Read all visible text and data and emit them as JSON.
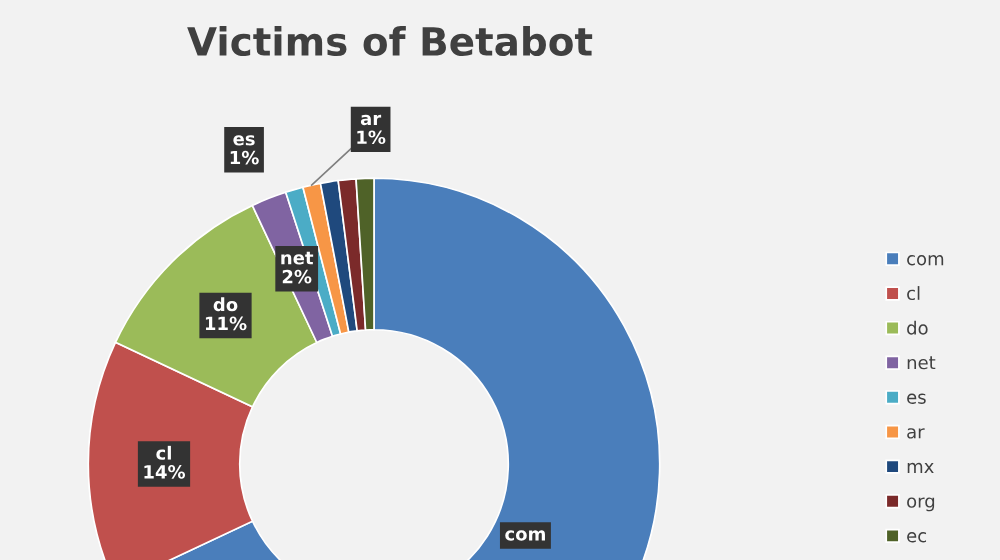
{
  "chart_data": {
    "type": "donut",
    "title": "Victims of Betabot",
    "categories": [
      "com",
      "cl",
      "do",
      "net",
      "es",
      "ar",
      "mx",
      "org",
      "ec"
    ],
    "values": [
      68,
      14,
      11,
      2,
      1,
      1,
      1,
      1,
      1
    ],
    "colors": [
      "#4a7ebb",
      "#c0504d",
      "#9bbb59",
      "#8064a2",
      "#4bacc6",
      "#f79646",
      "#1f497d",
      "#7b2a2a",
      "#4f6228"
    ],
    "value_labels": [
      null,
      "14%",
      "11%",
      "2%",
      "1%",
      "1%",
      null,
      null,
      null
    ],
    "legend": "right"
  }
}
